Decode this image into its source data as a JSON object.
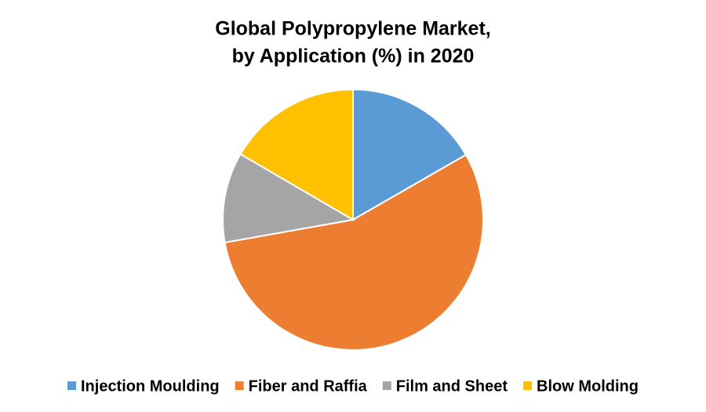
{
  "chart_data": {
    "type": "pie",
    "title": [
      "Global Polypropylene Market,",
      "by Application (%) in 2020"
    ],
    "categories": [
      "Injection Moulding",
      "Fiber and Raffia",
      "Film and Sheet",
      "Blow Molding"
    ],
    "values": [
      16.7,
      55.5,
      11.2,
      16.6
    ],
    "colors": [
      "#5b9bd5",
      "#ed7d31",
      "#a5a5a5",
      "#ffc000"
    ],
    "legend": "bottom"
  }
}
